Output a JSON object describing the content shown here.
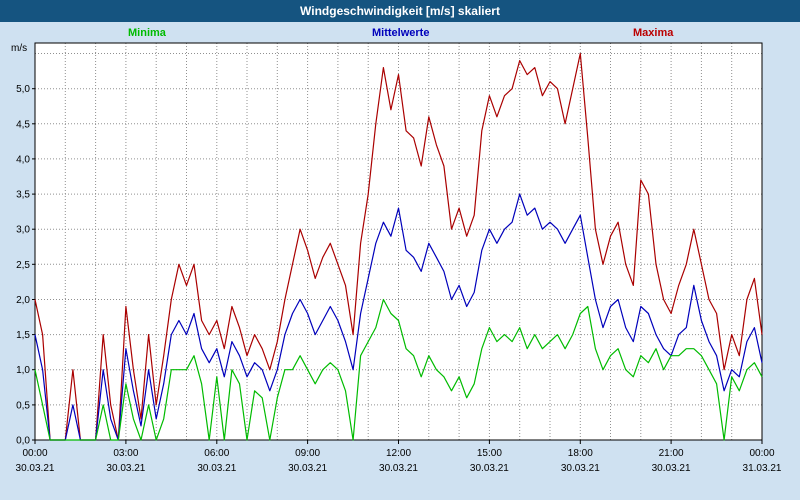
{
  "window": {
    "title": "Windgeschwindigkeit [m/s] skaliert"
  },
  "colors": {
    "title_bar": "#155480",
    "page_background": "#cfe1f1",
    "plot_background": "#ffffff",
    "grid": "#909090",
    "minima": "#00bb00",
    "mittelwerte": "#0000bb",
    "maxima": "#aa0000"
  },
  "legend": [
    {
      "label": "Minima",
      "color": "#00bb00"
    },
    {
      "label": "Mittelwerte",
      "color": "#0000bb"
    },
    {
      "label": "Maxima",
      "color": "#aa0000"
    }
  ],
  "chart_data": {
    "type": "line",
    "title": "Windgeschwindigkeit [m/s] skaliert",
    "ylabel": "m/s",
    "xlabel": "",
    "ylim": [
      0,
      5.65
    ],
    "grid": "dotted, hourly vertical and 0.5 m/s horizontal",
    "legend_position": "top",
    "x_step_hours": 0.25,
    "x_range_hours": [
      0,
      24
    ],
    "y_tick_labels": [
      "0,0",
      "0,5",
      "1,0",
      "1,5",
      "2,0",
      "2,5",
      "3,0",
      "3,5",
      "4,0",
      "4,5",
      "5,0"
    ],
    "x_ticks": [
      {
        "time": "00:00",
        "date": "30.03.21"
      },
      {
        "time": "03:00",
        "date": "30.03.21"
      },
      {
        "time": "06:00",
        "date": "30.03.21"
      },
      {
        "time": "09:00",
        "date": "30.03.21"
      },
      {
        "time": "12:00",
        "date": "30.03.21"
      },
      {
        "time": "15:00",
        "date": "30.03.21"
      },
      {
        "time": "18:00",
        "date": "30.03.21"
      },
      {
        "time": "21:00",
        "date": "30.03.21"
      },
      {
        "time": "00:00",
        "date": "31.03.21"
      }
    ],
    "series": [
      {
        "name": "Minima",
        "color": "#00bb00",
        "values": [
          1.0,
          0.5,
          0.0,
          0.0,
          0.0,
          0.0,
          0.0,
          0.0,
          0.0,
          0.5,
          0.0,
          0.0,
          0.8,
          0.3,
          0.0,
          0.5,
          0.0,
          0.3,
          1.0,
          1.0,
          1.0,
          1.2,
          0.8,
          0.0,
          0.9,
          0.0,
          1.0,
          0.8,
          0.0,
          0.7,
          0.6,
          0.0,
          0.6,
          1.0,
          1.0,
          1.2,
          1.0,
          0.8,
          1.0,
          1.1,
          1.0,
          0.7,
          0.0,
          1.2,
          1.4,
          1.6,
          2.0,
          1.8,
          1.7,
          1.3,
          1.2,
          0.9,
          1.2,
          1.0,
          0.9,
          0.7,
          0.9,
          0.6,
          0.8,
          1.3,
          1.6,
          1.4,
          1.5,
          1.4,
          1.6,
          1.3,
          1.5,
          1.3,
          1.4,
          1.5,
          1.3,
          1.5,
          1.8,
          1.9,
          1.3,
          1.0,
          1.2,
          1.3,
          1.0,
          0.9,
          1.2,
          1.1,
          1.3,
          1.0,
          1.2,
          1.2,
          1.3,
          1.3,
          1.2,
          1.0,
          0.8,
          0.0,
          0.9,
          0.7,
          1.0,
          1.1,
          0.9
        ]
      },
      {
        "name": "Mittelwerte",
        "color": "#0000bb",
        "values": [
          1.5,
          1.0,
          0.0,
          0.0,
          0.0,
          0.5,
          0.0,
          0.0,
          0.0,
          1.0,
          0.3,
          0.0,
          1.3,
          0.7,
          0.2,
          1.0,
          0.3,
          0.8,
          1.5,
          1.7,
          1.5,
          1.8,
          1.3,
          1.1,
          1.3,
          0.9,
          1.4,
          1.2,
          0.9,
          1.1,
          1.0,
          0.7,
          1.0,
          1.5,
          1.8,
          2.0,
          1.8,
          1.5,
          1.7,
          1.9,
          1.7,
          1.4,
          1.0,
          1.8,
          2.3,
          2.8,
          3.1,
          2.9,
          3.3,
          2.7,
          2.6,
          2.4,
          2.8,
          2.6,
          2.4,
          2.0,
          2.2,
          1.9,
          2.1,
          2.7,
          3.0,
          2.8,
          3.0,
          3.1,
          3.5,
          3.2,
          3.3,
          3.0,
          3.1,
          3.0,
          2.8,
          3.0,
          3.2,
          2.6,
          2.0,
          1.6,
          1.9,
          2.0,
          1.6,
          1.4,
          1.9,
          1.8,
          1.5,
          1.3,
          1.2,
          1.5,
          1.6,
          2.2,
          1.7,
          1.4,
          1.2,
          0.7,
          1.0,
          0.9,
          1.4,
          1.6,
          1.1
        ]
      },
      {
        "name": "Maxima",
        "color": "#aa0000",
        "values": [
          2.0,
          1.5,
          0.0,
          0.0,
          0.0,
          1.0,
          0.0,
          0.0,
          0.0,
          1.5,
          0.5,
          0.0,
          1.9,
          1.0,
          0.3,
          1.5,
          0.5,
          1.2,
          2.0,
          2.5,
          2.2,
          2.5,
          1.7,
          1.5,
          1.7,
          1.3,
          1.9,
          1.6,
          1.2,
          1.5,
          1.3,
          1.0,
          1.4,
          2.0,
          2.5,
          3.0,
          2.7,
          2.3,
          2.6,
          2.8,
          2.5,
          2.2,
          1.5,
          2.8,
          3.5,
          4.5,
          5.3,
          4.7,
          5.2,
          4.4,
          4.3,
          3.9,
          4.6,
          4.2,
          3.9,
          3.0,
          3.3,
          2.9,
          3.2,
          4.4,
          4.9,
          4.6,
          4.9,
          5.0,
          5.4,
          5.2,
          5.3,
          4.9,
          5.1,
          5.0,
          4.5,
          5.0,
          5.5,
          4.3,
          3.0,
          2.5,
          2.9,
          3.1,
          2.5,
          2.2,
          3.7,
          3.5,
          2.5,
          2.0,
          1.8,
          2.2,
          2.5,
          3.0,
          2.5,
          2.0,
          1.8,
          1.0,
          1.5,
          1.2,
          2.0,
          2.3,
          1.5
        ]
      }
    ]
  }
}
